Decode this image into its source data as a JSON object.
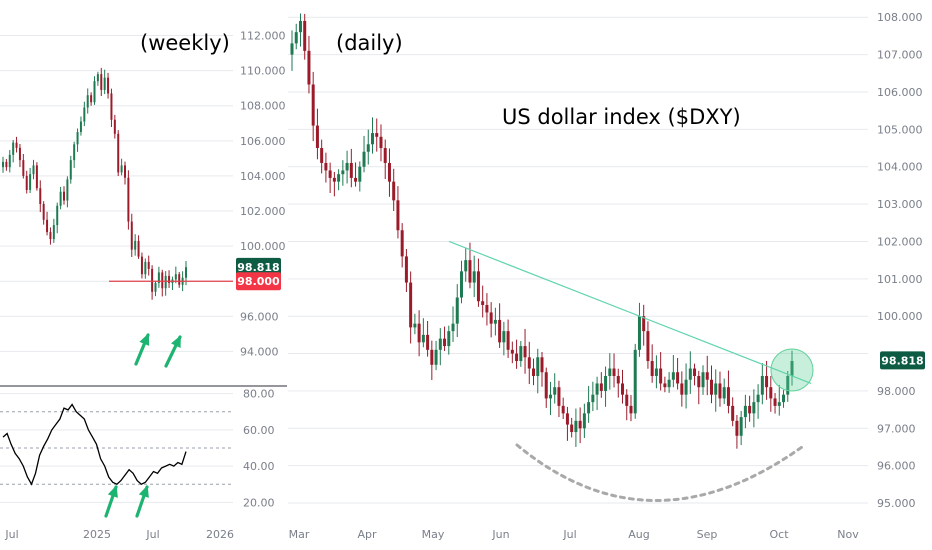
{
  "colors": {
    "up": "#1f7a52",
    "down": "#9b1b2b",
    "grid": "#e7e9ee",
    "axis_text": "#7a7f8a",
    "price_badge": "#0e5b43",
    "support_badge": "#f23645",
    "support_line": "#e0404a",
    "trendline": "#63d4b1",
    "arrow": "#1db371",
    "arc": "#a9a9a9",
    "circle": "#5fd19a"
  },
  "chart_data": [
    {
      "id": "weekly",
      "type": "candlestick",
      "title": "(weekly)",
      "ylim": [
        92.2,
        113.0
      ],
      "yticks": [
        "112.000",
        "110.000",
        "108.000",
        "106.000",
        "104.000",
        "102.000",
        "100.000",
        "96.000",
        "94.000"
      ],
      "yticks_values": [
        112,
        110,
        108,
        106,
        104,
        102,
        100,
        96,
        94
      ],
      "xticks": [
        "Jul",
        "2025",
        "Jul",
        "2026"
      ],
      "last_price": "98.818",
      "last_price_value": 98.818,
      "support_level": "98.000",
      "support_value": 98.0,
      "annotations": [
        "up-arrow",
        "up-arrow"
      ],
      "series": [
        {
          "name": "",
          "values": [
            104.8,
            104.5,
            105.2,
            105.9,
            105.6,
            104.9,
            104.0,
            103.2,
            104.1,
            104.6,
            103.3,
            102.4,
            101.5,
            100.8,
            100.4,
            101.2,
            102.3,
            103.1,
            102.6,
            103.8,
            104.9,
            105.8,
            106.5,
            107.1,
            107.9,
            108.6,
            108.2,
            109.4,
            109.8,
            108.9,
            109.6,
            108.7,
            107.2,
            106.4,
            104.2,
            104.6,
            103.9,
            101.4,
            99.8,
            100.3,
            99.4,
            98.4,
            99.1,
            98.7,
            97.4,
            97.9,
            98.5,
            97.6,
            98.3,
            97.9,
            98.1,
            98.4,
            97.8,
            98.2,
            98.8
          ]
        }
      ]
    },
    {
      "id": "oscillator",
      "type": "line",
      "ylim": [
        13,
        82
      ],
      "yticks": [
        "80.00",
        "60.00",
        "40.00",
        "20.00"
      ],
      "yticks_values": [
        80,
        60,
        40,
        20
      ],
      "reference_lines": [
        70,
        50,
        30
      ],
      "annotations": [
        "up-arrow",
        "up-arrow"
      ],
      "series": [
        {
          "name": "",
          "values": [
            56,
            58,
            52,
            47,
            44,
            40,
            34,
            30,
            36,
            46,
            51,
            55,
            60,
            63,
            66,
            72,
            71,
            74,
            70,
            68,
            66,
            60,
            56,
            52,
            44,
            40,
            34,
            31,
            30,
            32,
            35,
            38,
            36,
            32,
            30,
            31,
            34,
            37,
            36,
            39,
            40,
            41,
            40,
            42,
            41,
            48
          ]
        }
      ]
    },
    {
      "id": "daily",
      "type": "candlestick",
      "title": "(daily)",
      "subtitle": "US dollar index ($DXY)",
      "ylim": [
        94.6,
        108.3
      ],
      "yticks": [
        "108.000",
        "107.000",
        "106.000",
        "105.000",
        "104.000",
        "103.000",
        "102.000",
        "101.000",
        "100.000",
        "98.000",
        "97.000",
        "96.000",
        "95.000"
      ],
      "yticks_values": [
        108,
        107,
        106,
        105,
        104,
        103,
        102,
        101,
        100,
        98,
        97,
        96,
        95
      ],
      "xticks": [
        "Mar",
        "Apr",
        "May",
        "Jun",
        "Jul",
        "Aug",
        "Sep",
        "Oct",
        "Nov"
      ],
      "last_price": "98.818",
      "last_price_value": 98.818,
      "trendline": [
        {
          "date": "May 8",
          "value": 102.0
        },
        {
          "date": "Oct 15",
          "value": 98.2
        }
      ],
      "series": [
        {
          "name": "",
          "values": [
            107.3,
            107.6,
            107.9,
            107.1,
            106.2,
            105.1,
            104.5,
            104.1,
            103.9,
            103.7,
            103.6,
            103.8,
            103.9,
            104.1,
            103.7,
            103.6,
            104.0,
            104.4,
            104.6,
            104.9,
            104.8,
            104.5,
            104.1,
            103.6,
            103.1,
            102.3,
            101.6,
            100.9,
            99.7,
            99.8,
            99.3,
            99.5,
            99.1,
            98.7,
            99.1,
            99.4,
            99.2,
            99.6,
            99.8,
            100.5,
            101.2,
            101.5,
            100.9,
            101.2,
            100.4,
            100.3,
            100.1,
            99.8,
            99.9,
            99.3,
            99.6,
            99.1,
            99.0,
            98.8,
            99.2,
            98.9,
            98.6,
            98.4,
            98.9,
            98.5,
            97.8,
            97.9,
            98.1,
            97.6,
            97.4,
            97.1,
            96.9,
            97.2,
            97.0,
            97.4,
            97.7,
            97.9,
            98.2,
            98.0,
            98.4,
            98.6,
            98.4,
            98.2,
            97.9,
            97.6,
            97.4,
            99.1,
            100.0,
            99.6,
            98.8,
            98.4,
            98.6,
            98.2,
            98.1,
            98.3,
            98.5,
            98.2,
            97.9,
            98.3,
            98.6,
            98.4,
            98.1,
            98.5,
            98.3,
            97.9,
            98.2,
            97.8,
            98.1,
            97.6,
            97.2,
            96.8,
            97.3,
            97.6,
            97.4,
            97.7,
            97.9,
            98.4,
            98.1,
            97.8,
            97.6,
            97.7,
            97.9,
            98.4,
            98.8
          ]
        }
      ]
    }
  ]
}
